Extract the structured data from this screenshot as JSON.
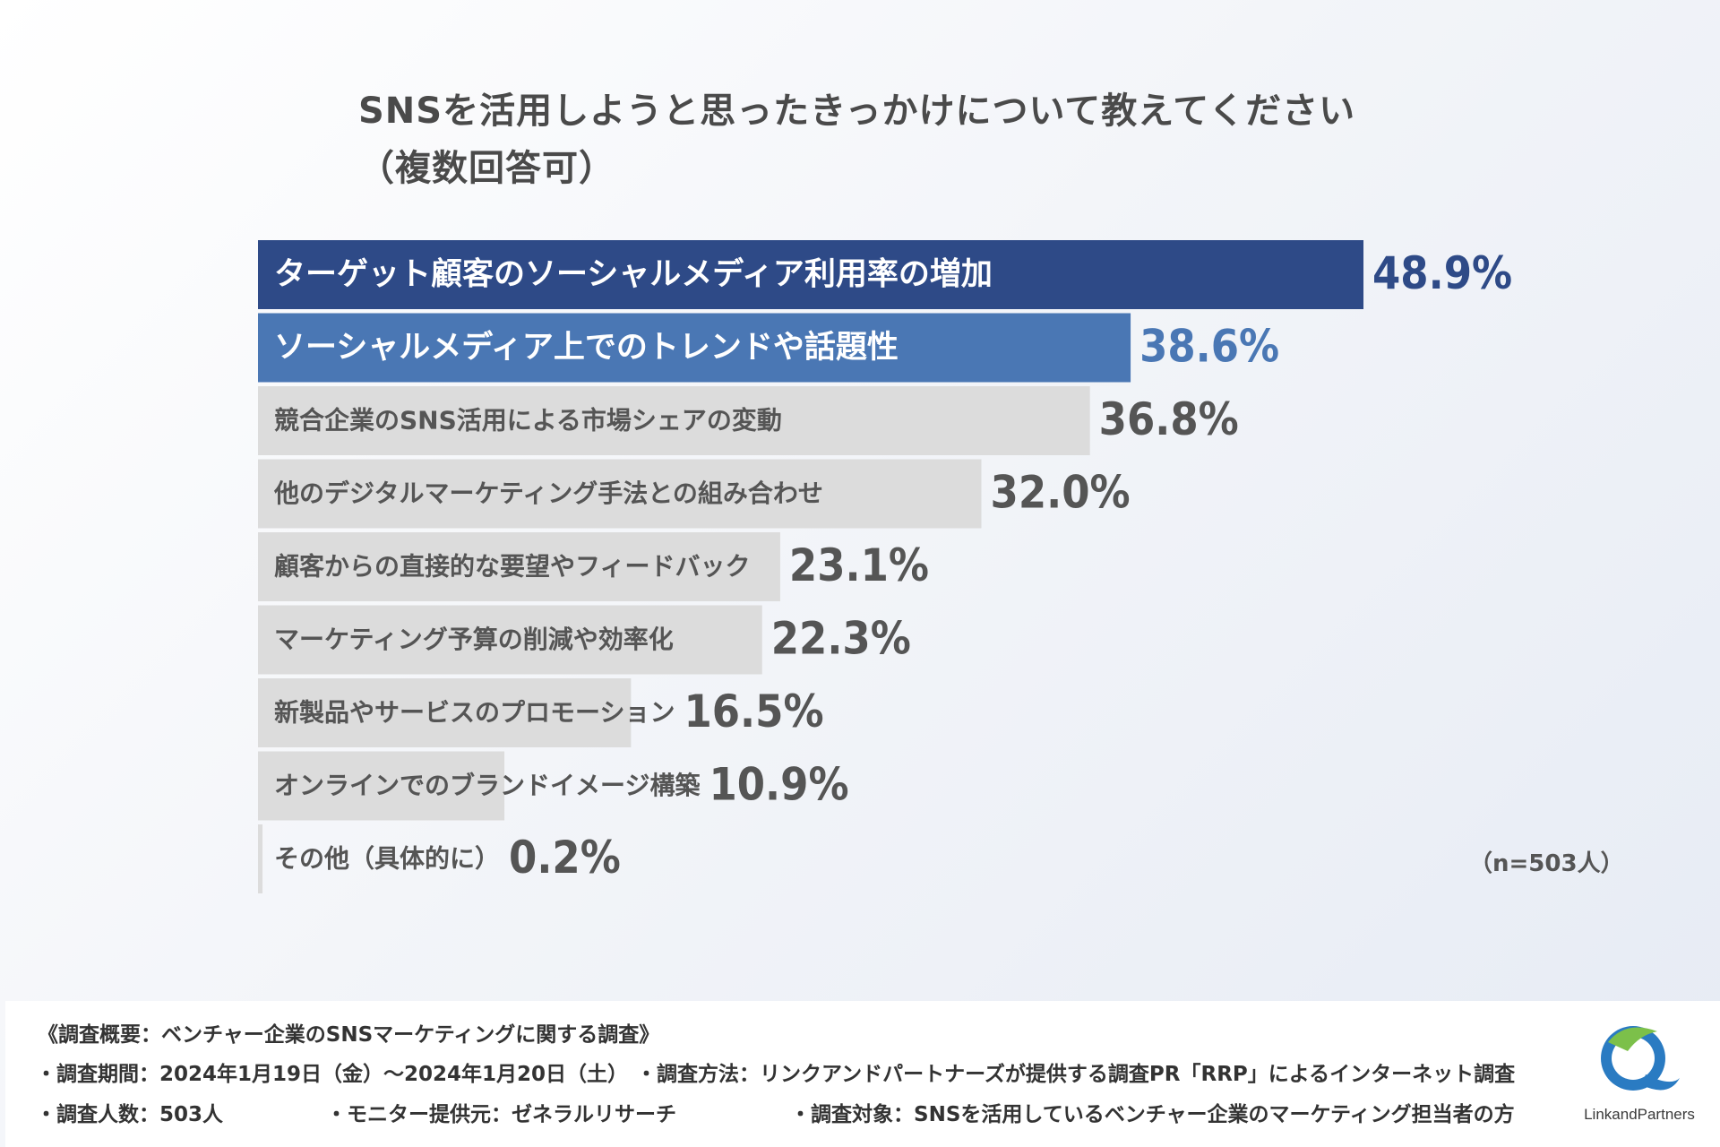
{
  "title": {
    "line1": "SNSを活用しようと思ったきっかけについて教えてください",
    "line2": "（複数回答可）"
  },
  "chart_data": {
    "type": "bar",
    "orientation": "horizontal",
    "categories": [
      "ターゲット顧客のソーシャルメディア利用率の増加",
      "ソーシャルメディア上でのトレンドや話題性",
      "競合企業のSNS活用による市場シェアの変動",
      "他のデジタルマーケティング手法との組み合わせ",
      "顧客からの直接的な要望やフィードバック",
      "マーケティング予算の削減や効率化",
      "新製品やサービスのプロモーション",
      "オンラインでのブランドイメージ構築",
      "その他（具体的に）"
    ],
    "values": [
      48.9,
      38.6,
      36.8,
      32.0,
      23.1,
      22.3,
      16.5,
      10.9,
      0.2
    ],
    "value_labels": [
      "48.9%",
      "38.6%",
      "36.8%",
      "32.0%",
      "23.1%",
      "22.3%",
      "16.5%",
      "10.9%",
      "0.2%"
    ],
    "highlight_colors": [
      "#2e4a87",
      "#4a77b4"
    ],
    "bar_color": "#dcdcdc",
    "highlight_text_color": "#ffffff",
    "text_color": "#555555",
    "xlim": [
      0,
      48.9
    ],
    "grid": false,
    "sample_note": "（n=503人）"
  },
  "footer": {
    "heading": "《調査概要：ベンチャー企業のSNSマーケティングに関する調査》",
    "period": "・調査期間：2024年1月19日（金）〜2024年1月20日（土）",
    "method": "・調査方法：リンクアンドパートナーズが提供する調査PR「RRP」によるインターネット調査",
    "count": "・調査人数：503人",
    "provider": "・モニター提供元：ゼネラルリサーチ",
    "target": "・調査対象：SNSを活用しているベンチャー企業のマーケティング担当者の方",
    "logo_text": "LinkandPartners"
  },
  "colors": {
    "logo_blue": "#2a7bc2",
    "logo_green": "#7cc04a"
  }
}
